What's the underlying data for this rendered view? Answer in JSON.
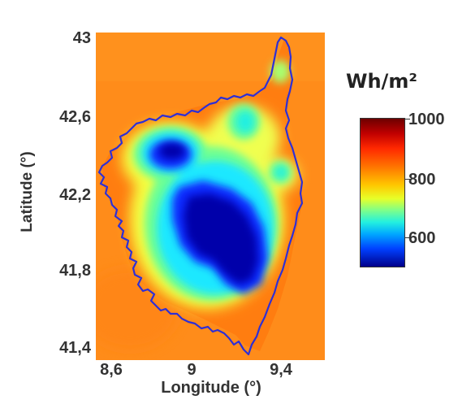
{
  "map": {
    "unit_label": "Wh/m²",
    "axis": {
      "xlabel": "Longitude (°)",
      "ylabel": "Latitude (°)",
      "xticks": [
        "8,6",
        "9",
        "9,4"
      ],
      "yticks": [
        "43",
        "42,6",
        "42,2",
        "41,8",
        "41,4"
      ]
    },
    "colorbar": {
      "ticks": [
        "1000",
        "800",
        "600"
      ],
      "colors": [
        "#00008a",
        "#0040ff",
        "#00a8ff",
        "#22f0e0",
        "#7dff8a",
        "#ffc800",
        "#ff7800",
        "#ff2800",
        "#c00000",
        "#6d0000"
      ]
    },
    "colors": {
      "background_field": "#ff8c1a",
      "coastline": "#2e2fd6"
    }
  }
}
